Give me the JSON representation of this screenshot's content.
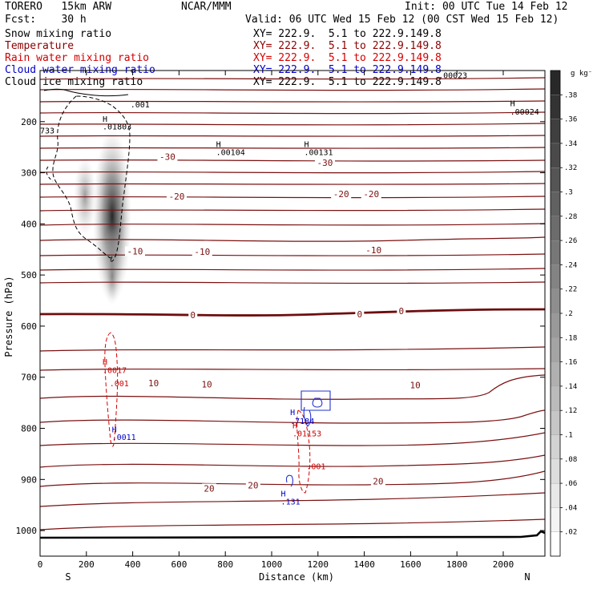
{
  "header": {
    "model": "TORERO   15km ARW",
    "forecast": "Fcst:    30 h",
    "org": "NCAR/MMM",
    "init": "Init: 00 UTC Tue 14 Feb 12",
    "valid": "Valid: 06 UTC Wed 15 Feb 12 (00 CST Wed 15 Feb 12)"
  },
  "legend": [
    {
      "label": "Snow mixing ratio",
      "color": "#000000",
      "xy": "XY= 222.9.  5.1 to 222.9.149.8",
      "xy_color": "#000000"
    },
    {
      "label": "Temperature",
      "color": "#8b0000",
      "xy": "XY= 222.9.  5.1 to 222.9.149.8",
      "xy_color": "#8b0000"
    },
    {
      "label": "Rain water mixing ratio",
      "color": "#d40000",
      "xy": "XY= 222.9.  5.1 to 222.9.149.8",
      "xy_color": "#d40000"
    },
    {
      "label": "Cloud water mixing ratio",
      "color": "#0000cc",
      "xy": "XY= 222.9.  5.1 to 222.9.149.8",
      "xy_color": "#0000cc"
    },
    {
      "label": "Cloud ice mixing ratio",
      "color": "#000000",
      "xy": "XY= 222.9.  5.1 to 222.9.149.8",
      "xy_color": "#000000"
    }
  ],
  "chart_data": {
    "type": "cross-section",
    "xlabel": "Distance (km)",
    "ylabel": "Pressure (hPa)",
    "xlim": [
      0,
      2180
    ],
    "ylim": [
      1050,
      100
    ],
    "xticks": [
      0,
      200,
      400,
      600,
      800,
      1000,
      1200,
      1400,
      1600,
      1800,
      2000
    ],
    "yticks": [
      200,
      300,
      400,
      500,
      600,
      700,
      800,
      900,
      1000
    ],
    "ends": {
      "left": "S",
      "right": "N"
    },
    "colorbar": {
      "unit": "g kg⁻¹",
      "levels": [
        ".02",
        ".04",
        ".06",
        ".08",
        ".1",
        ".12",
        ".14",
        ".16",
        ".18",
        ".2",
        ".22",
        ".24",
        ".26",
        ".28",
        ".3",
        ".32",
        ".34",
        ".36",
        ".38"
      ]
    },
    "temperature_labels": [
      {
        "text": "-30",
        "x": 550,
        "p": 270
      },
      {
        "text": "-30",
        "x": 1230,
        "p": 282
      },
      {
        "text": "-20",
        "x": 590,
        "p": 348
      },
      {
        "text": "-20",
        "x": 1300,
        "p": 343
      },
      {
        "text": "-20",
        "x": 1430,
        "p": 343
      },
      {
        "text": "-10",
        "x": 410,
        "p": 455
      },
      {
        "text": "-10",
        "x": 700,
        "p": 456
      },
      {
        "text": "-10",
        "x": 1440,
        "p": 453
      },
      {
        "text": "0",
        "x": 660,
        "p": 580
      },
      {
        "text": "0",
        "x": 1380,
        "p": 578
      },
      {
        "text": "0",
        "x": 1560,
        "p": 572
      },
      {
        "text": "10",
        "x": 490,
        "p": 713
      },
      {
        "text": "10",
        "x": 720,
        "p": 715
      },
      {
        "text": "10",
        "x": 1620,
        "p": 717
      },
      {
        "text": "20",
        "x": 730,
        "p": 919
      },
      {
        "text": "20",
        "x": 920,
        "p": 913
      },
      {
        "text": "20",
        "x": 1460,
        "p": 905
      }
    ],
    "maxima_labels": [
      {
        "text": "H",
        "x": 270,
        "p": 200,
        "color": "#000000"
      },
      {
        "text": ".01803",
        "x": 270,
        "p": 215,
        "color": "#000000"
      },
      {
        "text": "H",
        "x": 760,
        "p": 250,
        "color": "#000000"
      },
      {
        "text": ".00104",
        "x": 760,
        "p": 265,
        "color": "#000000"
      },
      {
        "text": "H",
        "x": 1140,
        "p": 250,
        "color": "#000000"
      },
      {
        "text": ".00131",
        "x": 1140,
        "p": 265,
        "color": "#000000"
      },
      {
        "text": "H",
        "x": 2030,
        "p": 170,
        "color": "#000000"
      },
      {
        "text": ".00024",
        "x": 2030,
        "p": 186,
        "color": "#000000"
      },
      {
        "text": ".001",
        "x": 390,
        "p": 172,
        "color": "#000000"
      },
      {
        "text": ".00023",
        "x": 1720,
        "p": 115,
        "color": "#000000"
      },
      {
        "text": "733",
        "x": 0,
        "p": 223,
        "color": "#000000"
      },
      {
        "text": "H",
        "x": 270,
        "p": 675,
        "color": "#cc0000"
      },
      {
        "text": ".0017",
        "x": 270,
        "p": 692,
        "color": "#cc0000"
      },
      {
        "text": ".001",
        "x": 300,
        "p": 718,
        "color": "#cc0000"
      },
      {
        "text": "H",
        "x": 310,
        "p": 808,
        "color": "#0000cc"
      },
      {
        "text": ".0011",
        "x": 310,
        "p": 823,
        "color": "#0000cc"
      },
      {
        "text": "H",
        "x": 1080,
        "p": 774,
        "color": "#0000cc"
      },
      {
        "text": ".7184",
        "x": 1080,
        "p": 791,
        "color": "#0000cc"
      },
      {
        "text": "H",
        "x": 1090,
        "p": 800,
        "color": "#cc0000"
      },
      {
        "text": ".01153",
        "x": 1090,
        "p": 816,
        "color": "#cc0000"
      },
      {
        "text": ".001",
        "x": 1150,
        "p": 880,
        "color": "#cc0000"
      },
      {
        "text": "H",
        "x": 1040,
        "p": 933,
        "color": "#0000cc"
      },
      {
        "text": ".131",
        "x": 1040,
        "p": 949,
        "color": "#0000cc"
      }
    ]
  }
}
